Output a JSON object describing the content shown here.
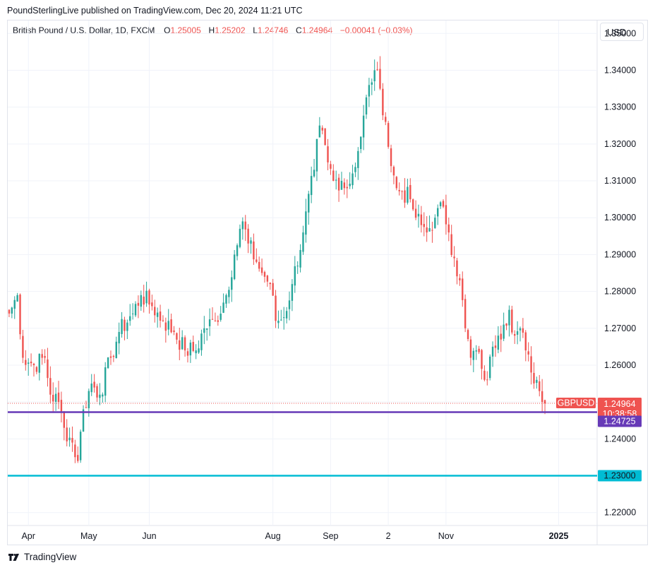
{
  "publisher_line": "PoundSterlingLive published on TradingView.com, Dec 20, 2024 11:21 UTC",
  "legend": {
    "symbol": "British Pound / U.S. Dollar, 1D, FXCM",
    "o_label": "O",
    "o_value": "1.25005",
    "h_label": "H",
    "h_value": "1.25202",
    "l_label": "L",
    "l_value": "1.24746",
    "c_label": "C",
    "c_value": "1.24964",
    "change": "−0.00041 (−0.03%)"
  },
  "currency_button": "USD",
  "footer_brand": "TradingView",
  "colors": {
    "up": "#26a69a",
    "down": "#ef5350",
    "support_line": "#673ab7",
    "target_line": "#00bcd4",
    "price_label": "#ef5350",
    "grid": "#f0f3fa"
  },
  "labels": {
    "ticker_tag": "GBPUSD",
    "last_price": "1.24964",
    "countdown": "10:38:58",
    "support_price": "1.24725",
    "target_price": "1.23000"
  },
  "chart_data": {
    "type": "candlestick",
    "title": "British Pound / U.S. Dollar, 1D, FXCM",
    "ylim": [
      1.2165,
      1.3535
    ],
    "y_ticks": [
      "1.22000",
      "1.23000",
      "1.24000",
      "1.25000",
      "1.26000",
      "1.27000",
      "1.28000",
      "1.29000",
      "1.30000",
      "1.31000",
      "1.32000",
      "1.33000",
      "1.34000",
      "1.35000"
    ],
    "x_ticks": [
      {
        "label": "Apr",
        "bar": 7
      },
      {
        "label": "May",
        "bar": 29
      },
      {
        "label": "Jun",
        "bar": 51
      },
      {
        "label": "Aug",
        "bar": 96
      },
      {
        "label": "Sep",
        "bar": 117
      },
      {
        "label": "2",
        "bar": 138
      },
      {
        "label": "Nov",
        "bar": 159
      },
      {
        "label": "2025",
        "bar": 200
      }
    ],
    "x_range_bars": [
      -0.5,
      214
    ],
    "horizontal_lines": [
      {
        "name": "support",
        "value": 1.24725
      },
      {
        "name": "target",
        "value": 1.23
      }
    ],
    "last_price": 1.24964,
    "close_anchors": [
      [
        0,
        1.274
      ],
      [
        3,
        1.279
      ],
      [
        5,
        1.262
      ],
      [
        9,
        1.26
      ],
      [
        13,
        1.262
      ],
      [
        15,
        1.252
      ],
      [
        18,
        1.25
      ],
      [
        20,
        1.243
      ],
      [
        23,
        1.239
      ],
      [
        25,
        1.234
      ],
      [
        27,
        1.248
      ],
      [
        30,
        1.255
      ],
      [
        33,
        1.252
      ],
      [
        37,
        1.262
      ],
      [
        40,
        1.269
      ],
      [
        45,
        1.274
      ],
      [
        48,
        1.279
      ],
      [
        52,
        1.276
      ],
      [
        56,
        1.272
      ],
      [
        60,
        1.269
      ],
      [
        64,
        1.264
      ],
      [
        68,
        1.264
      ],
      [
        71,
        1.27
      ],
      [
        75,
        1.272
      ],
      [
        79,
        1.279
      ],
      [
        82,
        1.29
      ],
      [
        85,
        1.299
      ],
      [
        87,
        1.293
      ],
      [
        90,
        1.288
      ],
      [
        92,
        1.285
      ],
      [
        95,
        1.282
      ],
      [
        97,
        1.272
      ],
      [
        100,
        1.273
      ],
      [
        103,
        1.282
      ],
      [
        107,
        1.296
      ],
      [
        111,
        1.313
      ],
      [
        113,
        1.325
      ],
      [
        116,
        1.315
      ],
      [
        118,
        1.31
      ],
      [
        121,
        1.31
      ],
      [
        123,
        1.308
      ],
      [
        125,
        1.312
      ],
      [
        128,
        1.322
      ],
      [
        131,
        1.336
      ],
      [
        133,
        1.34
      ],
      [
        135,
        1.335
      ],
      [
        137,
        1.326
      ],
      [
        139,
        1.314
      ],
      [
        141,
        1.308
      ],
      [
        143,
        1.307
      ],
      [
        146,
        1.305
      ],
      [
        148,
        1.3
      ],
      [
        150,
        1.298
      ],
      [
        152,
        1.296
      ],
      [
        155,
        1.3
      ],
      [
        158,
        1.303
      ],
      [
        160,
        1.296
      ],
      [
        162,
        1.289
      ],
      [
        164,
        1.283
      ],
      [
        166,
        1.27
      ],
      [
        168,
        1.262
      ],
      [
        170,
        1.264
      ],
      [
        172,
        1.259
      ],
      [
        174,
        1.256
      ],
      [
        176,
        1.265
      ],
      [
        178,
        1.268
      ],
      [
        180,
        1.271
      ],
      [
        182,
        1.275
      ],
      [
        184,
        1.268
      ],
      [
        186,
        1.27
      ],
      [
        188,
        1.264
      ],
      [
        190,
        1.258
      ],
      [
        192,
        1.256
      ],
      [
        194,
        1.25
      ],
      [
        195,
        1.2496
      ]
    ]
  }
}
